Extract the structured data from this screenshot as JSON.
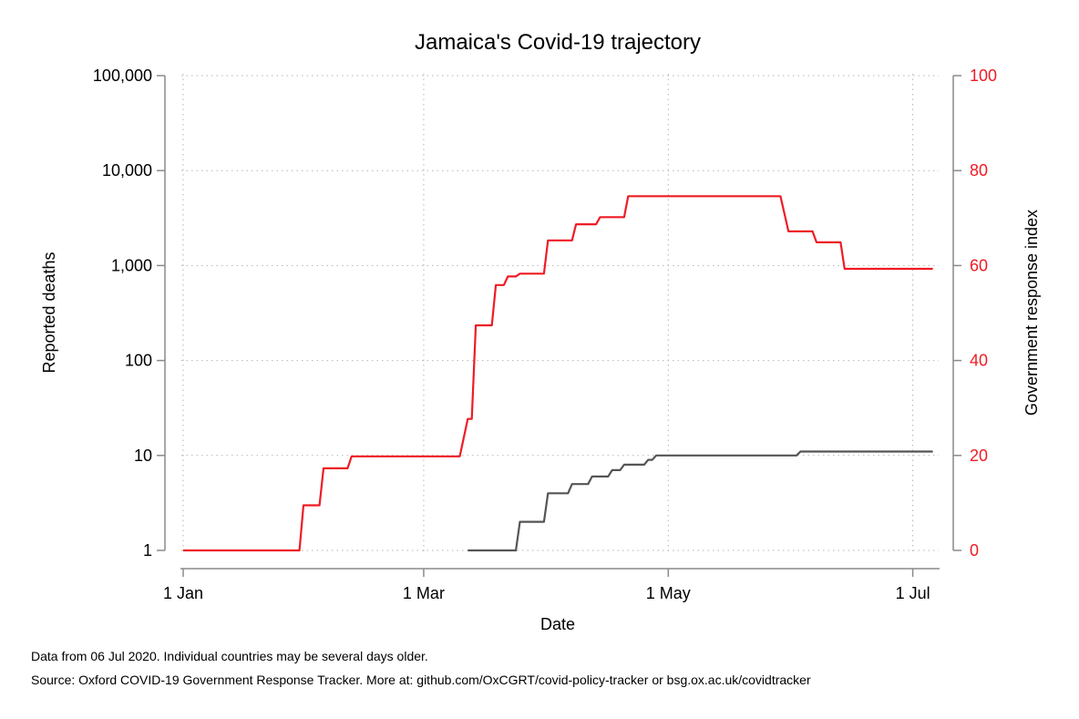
{
  "chart_data": {
    "type": "line",
    "title": "Jamaica's Covid-19 trajectory",
    "xlabel": "Date",
    "ylabel_left": "Reported deaths",
    "ylabel_right": "Government response index",
    "x_ticks": [
      "1 Jan",
      "1 Mar",
      "1 May",
      "1 Jul"
    ],
    "x_tick_days": [
      1,
      61,
      122,
      183
    ],
    "xlim_days": [
      1,
      189
    ],
    "y_left": {
      "scale": "log",
      "ylim": [
        1,
        100000
      ],
      "ticks": [
        1,
        10,
        100,
        1000,
        10000,
        100000
      ],
      "tick_labels": [
        "1",
        "10",
        "100",
        "1,000",
        "10,000",
        "100,000"
      ]
    },
    "y_right": {
      "scale": "linear",
      "ylim": [
        0,
        100
      ],
      "ticks": [
        0,
        20,
        40,
        60,
        80,
        100
      ],
      "tick_labels": [
        "0",
        "20",
        "40",
        "60",
        "80",
        "100"
      ]
    },
    "grid": true,
    "colors": {
      "deaths": "#555555",
      "response": "#ee1c25"
    },
    "series": [
      {
        "axis": "right",
        "color": "#ee1c25",
        "points": [
          [
            "2020-01-01",
            0
          ],
          [
            "2020-01-30",
            0
          ],
          [
            "2020-01-31",
            9.5
          ],
          [
            "2020-02-04",
            9.5
          ],
          [
            "2020-02-05",
            17.3
          ],
          [
            "2020-02-11",
            17.3
          ],
          [
            "2020-02-12",
            19.8
          ],
          [
            "2020-03-10",
            19.8
          ],
          [
            "2020-03-12",
            27.7
          ],
          [
            "2020-03-13",
            27.7
          ],
          [
            "2020-03-14",
            47.4
          ],
          [
            "2020-03-18",
            47.4
          ],
          [
            "2020-03-19",
            55.9
          ],
          [
            "2020-03-21",
            55.9
          ],
          [
            "2020-03-22",
            57.7
          ],
          [
            "2020-03-24",
            57.7
          ],
          [
            "2020-03-25",
            58.3
          ],
          [
            "2020-03-31",
            58.3
          ],
          [
            "2020-04-01",
            65.3
          ],
          [
            "2020-04-07",
            65.3
          ],
          [
            "2020-04-08",
            68.7
          ],
          [
            "2020-04-13",
            68.7
          ],
          [
            "2020-04-14",
            70.2
          ],
          [
            "2020-04-20",
            70.2
          ],
          [
            "2020-04-21",
            74.6
          ],
          [
            "2020-05-29",
            74.6
          ],
          [
            "2020-05-31",
            67.2
          ],
          [
            "2020-06-06",
            67.2
          ],
          [
            "2020-06-07",
            64.9
          ],
          [
            "2020-06-13",
            64.9
          ],
          [
            "2020-06-14",
            59.3
          ],
          [
            "2020-07-06",
            59.3
          ]
        ]
      },
      {
        "axis": "left",
        "color": "#555555",
        "points": [
          [
            "2020-03-12",
            1
          ],
          [
            "2020-03-24",
            1
          ],
          [
            "2020-03-25",
            2
          ],
          [
            "2020-03-31",
            2
          ],
          [
            "2020-04-01",
            4
          ],
          [
            "2020-04-06",
            4
          ],
          [
            "2020-04-07",
            5
          ],
          [
            "2020-04-11",
            5
          ],
          [
            "2020-04-12",
            6
          ],
          [
            "2020-04-16",
            6
          ],
          [
            "2020-04-17",
            7
          ],
          [
            "2020-04-19",
            7
          ],
          [
            "2020-04-20",
            8
          ],
          [
            "2020-04-25",
            8
          ],
          [
            "2020-04-26",
            9
          ],
          [
            "2020-04-27",
            9
          ],
          [
            "2020-04-28",
            10
          ],
          [
            "2020-06-02",
            10
          ],
          [
            "2020-06-03",
            11
          ],
          [
            "2020-07-06",
            11
          ]
        ]
      }
    ]
  },
  "notes": {
    "line1": "Data from 06 Jul 2020. Individual countries may be several days older.",
    "line2": "Source: Oxford COVID-19 Government Response Tracker. More at: github.com/OxCGRT/covid-policy-tracker or bsg.ox.ac.uk/covidtracker"
  }
}
